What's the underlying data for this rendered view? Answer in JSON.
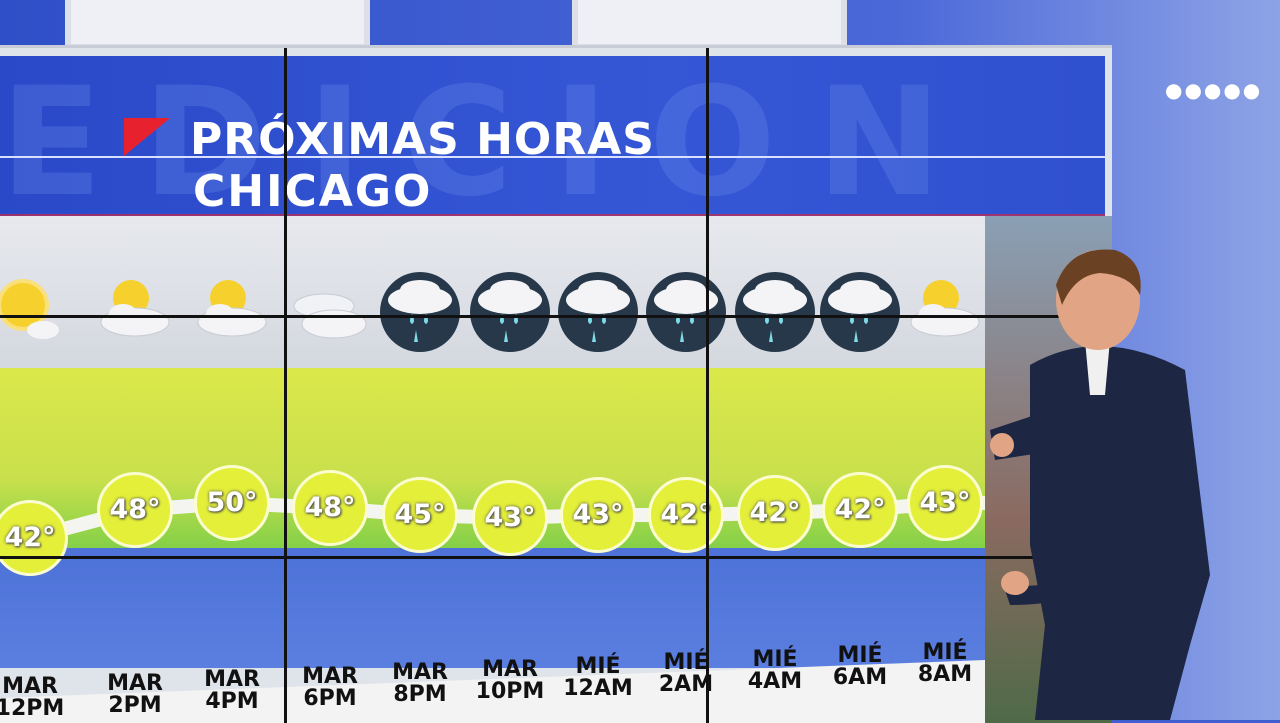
{
  "header": {
    "title": "PRÓXIMAS HORAS",
    "city": "CHICAGO"
  },
  "colors": {
    "brand_red": "#e8212e",
    "header_blue": "#2f50cf",
    "temp_circle": "#e4ef3a",
    "band_green": "#c9e04c"
  },
  "forecast": [
    {
      "day": "MAR",
      "time": "12PM",
      "temp": "42°",
      "icon": "sunny-icon"
    },
    {
      "day": "MAR",
      "time": "2PM",
      "temp": "48°",
      "icon": "partly-cloudy-icon"
    },
    {
      "day": "MAR",
      "time": "4PM",
      "temp": "50°",
      "icon": "partly-cloudy-icon"
    },
    {
      "day": "MAR",
      "time": "6PM",
      "temp": "48°",
      "icon": "cloudy-icon"
    },
    {
      "day": "MAR",
      "time": "8PM",
      "temp": "45°",
      "icon": "rain-icon"
    },
    {
      "day": "MAR",
      "time": "10PM",
      "temp": "43°",
      "icon": "rain-icon"
    },
    {
      "day": "MIÉ",
      "time": "12AM",
      "temp": "43°",
      "icon": "rain-icon"
    },
    {
      "day": "MIÉ",
      "time": "2AM",
      "temp": "42°",
      "icon": "rain-icon"
    },
    {
      "day": "MIÉ",
      "time": "4AM",
      "temp": "42°",
      "icon": "rain-icon"
    },
    {
      "day": "MIÉ",
      "time": "6AM",
      "temp": "42°",
      "icon": "rain-icon"
    },
    {
      "day": "MIÉ",
      "time": "8AM",
      "temp": "43°",
      "icon": "partly-cloudy-icon"
    }
  ]
}
